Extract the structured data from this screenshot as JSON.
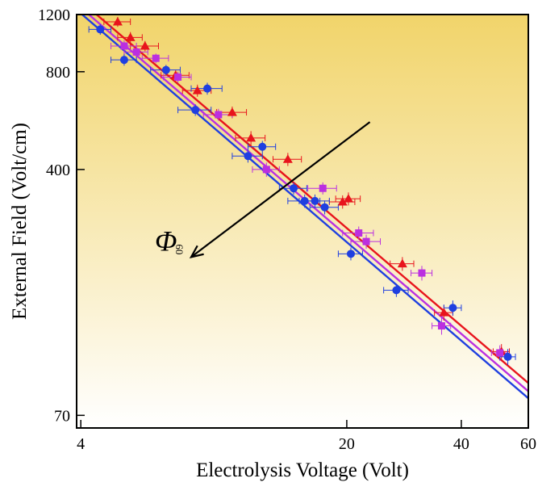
{
  "chart_data": {
    "type": "scatter",
    "title": "",
    "xlabel": "Electrolysis Voltage (Volt)",
    "ylabel": "External Field (Volt/cm)",
    "x_scale": "log",
    "y_scale": "log",
    "xlim": [
      3.9,
      60
    ],
    "ylim": [
      64,
      1200
    ],
    "x_ticks": [
      4,
      20,
      40,
      60
    ],
    "y_ticks": [
      70,
      400,
      800,
      1200
    ],
    "grid": false,
    "legend": "none",
    "background_gradient": {
      "top": "#f1d46a",
      "bottom": "#ffffff"
    },
    "annotation": {
      "label_main": "Φ",
      "label_sub": "60",
      "arrow_from": [
        23,
        560
      ],
      "arrow_to": [
        7.8,
        215
      ]
    },
    "series": [
      {
        "color": "#e8141c",
        "marker": "triangle",
        "fit_line": [
          [
            4.0,
            1320
          ],
          [
            60,
            88
          ]
        ],
        "points": [
          {
            "x": 5.0,
            "y": 1140,
            "xerr": 0.4,
            "yerr": 40
          },
          {
            "x": 5.4,
            "y": 1020,
            "xerr": 0.4,
            "yerr": 40
          },
          {
            "x": 5.9,
            "y": 960,
            "xerr": 0.5,
            "yerr": 35
          },
          {
            "x": 7.1,
            "y": 780,
            "xerr": 0.6,
            "yerr": 30
          },
          {
            "x": 8.1,
            "y": 700,
            "xerr": 0.7,
            "yerr": 30
          },
          {
            "x": 10.0,
            "y": 600,
            "xerr": 0.9,
            "yerr": 25
          },
          {
            "x": 11.2,
            "y": 500,
            "xerr": 1.0,
            "yerr": 25
          },
          {
            "x": 14.0,
            "y": 430,
            "xerr": 1.2,
            "yerr": 20
          },
          {
            "x": 19.5,
            "y": 318,
            "xerr": 1.5,
            "yerr": 15
          },
          {
            "x": 20.2,
            "y": 325,
            "xerr": 1.5,
            "yerr": 15
          },
          {
            "x": 28.0,
            "y": 205,
            "xerr": 2.0,
            "yerr": 10
          },
          {
            "x": 36.0,
            "y": 145,
            "xerr": 2.0,
            "yerr": 8
          },
          {
            "x": 51.0,
            "y": 110,
            "xerr": 2.5,
            "yerr": 6
          }
        ]
      },
      {
        "color": "#bb2fe0",
        "marker": "square",
        "fit_line": [
          [
            4.0,
            1260
          ],
          [
            60,
            83
          ]
        ],
        "points": [
          {
            "x": 5.2,
            "y": 960,
            "xerr": 0.4,
            "yerr": 40
          },
          {
            "x": 5.6,
            "y": 920,
            "xerr": 0.4,
            "yerr": 35
          },
          {
            "x": 6.3,
            "y": 880,
            "xerr": 0.5,
            "yerr": 30
          },
          {
            "x": 7.2,
            "y": 770,
            "xerr": 0.6,
            "yerr": 30
          },
          {
            "x": 9.2,
            "y": 590,
            "xerr": 0.8,
            "yerr": 25
          },
          {
            "x": 12.3,
            "y": 400,
            "xerr": 1.0,
            "yerr": 20
          },
          {
            "x": 17.3,
            "y": 350,
            "xerr": 1.5,
            "yerr": 15
          },
          {
            "x": 21.5,
            "y": 255,
            "xerr": 2.0,
            "yerr": 12
          },
          {
            "x": 22.5,
            "y": 240,
            "xerr": 2.0,
            "yerr": 12
          },
          {
            "x": 31.5,
            "y": 192,
            "xerr": 2.0,
            "yerr": 10
          },
          {
            "x": 35.5,
            "y": 132,
            "xerr": 2.0,
            "yerr": 8
          },
          {
            "x": 50.5,
            "y": 109,
            "xerr": 2.5,
            "yerr": 6
          }
        ]
      },
      {
        "color": "#1f3fe0",
        "marker": "circle",
        "fit_line": [
          [
            4.0,
            1210
          ],
          [
            60,
            79
          ]
        ],
        "points": [
          {
            "x": 4.5,
            "y": 1080,
            "xerr": 0.3,
            "yerr": 40
          },
          {
            "x": 5.2,
            "y": 870,
            "xerr": 0.4,
            "yerr": 35
          },
          {
            "x": 6.7,
            "y": 810,
            "xerr": 0.6,
            "yerr": 30
          },
          {
            "x": 8.0,
            "y": 610,
            "xerr": 0.8,
            "yerr": 25
          },
          {
            "x": 8.6,
            "y": 710,
            "xerr": 0.8,
            "yerr": 30
          },
          {
            "x": 11.0,
            "y": 440,
            "xerr": 1.0,
            "yerr": 20
          },
          {
            "x": 12.0,
            "y": 470,
            "xerr": 1.0,
            "yerr": 20
          },
          {
            "x": 14.5,
            "y": 350,
            "xerr": 1.2,
            "yerr": 15
          },
          {
            "x": 15.5,
            "y": 320,
            "xerr": 1.5,
            "yerr": 15
          },
          {
            "x": 16.5,
            "y": 320,
            "xerr": 1.5,
            "yerr": 15
          },
          {
            "x": 17.5,
            "y": 306,
            "xerr": 1.5,
            "yerr": 15
          },
          {
            "x": 20.5,
            "y": 220,
            "xerr": 1.5,
            "yerr": 10
          },
          {
            "x": 27.0,
            "y": 170,
            "xerr": 2.0,
            "yerr": 8
          },
          {
            "x": 38.0,
            "y": 150,
            "xerr": 2.0,
            "yerr": 8
          },
          {
            "x": 53.0,
            "y": 106,
            "xerr": 2.5,
            "yerr": 6
          }
        ]
      }
    ]
  }
}
